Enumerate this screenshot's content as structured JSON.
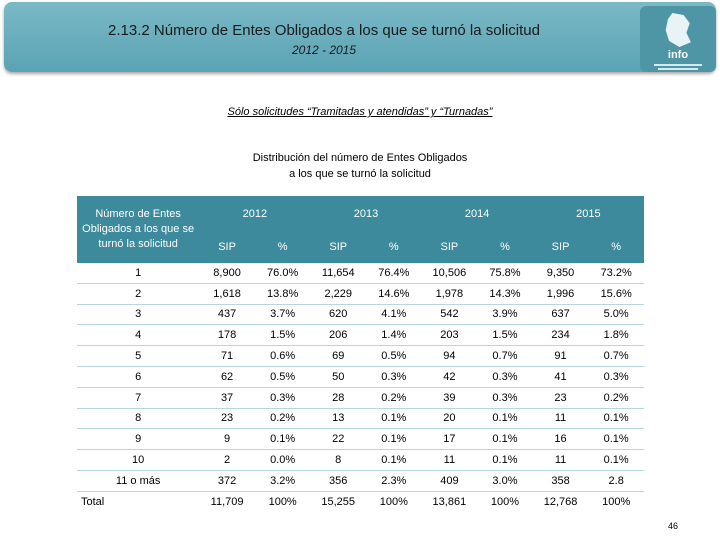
{
  "header": {
    "title": "2.13.2 Número de Entes Obligados a los que se turnó la solicitud",
    "subtitle": "2012 - 2015",
    "logo_text": "info"
  },
  "note": "Sólo solicitudes “Tramitadas y atendidas” y “Turnadas”",
  "table": {
    "caption": "Distribución del número de Entes Obligados a los que se turnó la solicitud",
    "label_header": "Número de Entes Obligados a los que se turnó la solicitud",
    "years": [
      "2012",
      "2013",
      "2014",
      "2015"
    ],
    "sub_headers": [
      "SIP",
      "%",
      "SIP",
      "%",
      "SIP",
      "%",
      "SIP",
      "%"
    ],
    "rows": [
      {
        "label": "1",
        "cells": [
          "8,900",
          "76.0%",
          "11,654",
          "76.4%",
          "10,506",
          "75.8%",
          "9,350",
          "73.2%"
        ]
      },
      {
        "label": "2",
        "cells": [
          "1,618",
          "13.8%",
          "2,229",
          "14.6%",
          "1,978",
          "14.3%",
          "1,996",
          "15.6%"
        ]
      },
      {
        "label": "3",
        "cells": [
          "437",
          "3.7%",
          "620",
          "4.1%",
          "542",
          "3.9%",
          "637",
          "5.0%"
        ]
      },
      {
        "label": "4",
        "cells": [
          "178",
          "1.5%",
          "206",
          "1.4%",
          "203",
          "1.5%",
          "234",
          "1.8%"
        ]
      },
      {
        "label": "5",
        "cells": [
          "71",
          "0.6%",
          "69",
          "0.5%",
          "94",
          "0.7%",
          "91",
          "0.7%"
        ]
      },
      {
        "label": "6",
        "cells": [
          "62",
          "0.5%",
          "50",
          "0.3%",
          "42",
          "0.3%",
          "41",
          "0.3%"
        ]
      },
      {
        "label": "7",
        "cells": [
          "37",
          "0.3%",
          "28",
          "0.2%",
          "39",
          "0.3%",
          "23",
          "0.2%"
        ]
      },
      {
        "label": "8",
        "cells": [
          "23",
          "0.2%",
          "13",
          "0.1%",
          "20",
          "0.1%",
          "11",
          "0.1%"
        ]
      },
      {
        "label": "9",
        "cells": [
          "9",
          "0.1%",
          "22",
          "0.1%",
          "17",
          "0.1%",
          "16",
          "0.1%"
        ]
      },
      {
        "label": "10",
        "cells": [
          "2",
          "0.0%",
          "8",
          "0.1%",
          "11",
          "0.1%",
          "11",
          "0.1%"
        ]
      },
      {
        "label": "11 o más",
        "cells": [
          "372",
          "3.2%",
          "356",
          "2.3%",
          "409",
          "3.0%",
          "358",
          "2.8"
        ]
      }
    ],
    "total": {
      "label": "Total",
      "cells": [
        "11,709",
        "100%",
        "15,255",
        "100%",
        "13,861",
        "100%",
        "12,768",
        "100%"
      ]
    }
  },
  "page_number": "46",
  "colors": {
    "banner": "#5aa3b4",
    "table_header": "#3c8a9c",
    "row_rule": "#b6d7df"
  }
}
